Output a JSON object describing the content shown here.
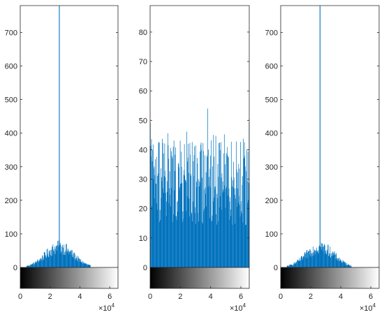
{
  "figure": {
    "colors": {
      "bars": "#0072BD",
      "axes": "#262626",
      "background": "#ffffff"
    }
  },
  "chart_data": [
    {
      "type": "bar",
      "title": "",
      "xlabel": "",
      "ylabel": "",
      "xlim": [
        0,
        65535
      ],
      "ylim": [
        0,
        780
      ],
      "x_exponent": "4",
      "yticks": [
        "0",
        "100",
        "200",
        "300",
        "400",
        "500",
        "600",
        "700"
      ],
      "xticks": [
        "0",
        "2",
        "4",
        "6"
      ],
      "distribution": {
        "shape": "gaussian",
        "center": 26200,
        "sigma": 9500,
        "peak_count": 70,
        "support": [
          4000,
          47000
        ]
      },
      "spike": {
        "x": 26200,
        "value": 780
      },
      "colorbar": "grayscale"
    },
    {
      "type": "bar",
      "title": "",
      "xlabel": "",
      "ylabel": "",
      "xlim": [
        0,
        65535
      ],
      "ylim": [
        0,
        89
      ],
      "x_exponent": "4",
      "yticks": [
        "0",
        "10",
        "20",
        "30",
        "40",
        "50",
        "60",
        "70",
        "80"
      ],
      "xticks": [
        "0",
        "2",
        "4",
        "6"
      ],
      "distribution": {
        "shape": "uniform",
        "mean_count": 32,
        "typical_max": 44,
        "max_value": 54
      },
      "colorbar": "grayscale"
    },
    {
      "type": "bar",
      "title": "",
      "xlabel": "",
      "ylabel": "",
      "xlim": [
        0,
        65535
      ],
      "ylim": [
        0,
        780
      ],
      "x_exponent": "4",
      "yticks": [
        "0",
        "100",
        "200",
        "300",
        "400",
        "500",
        "600",
        "700"
      ],
      "xticks": [
        "0",
        "2",
        "4",
        "6"
      ],
      "distribution": {
        "shape": "gaussian",
        "center": 26200,
        "sigma": 9500,
        "peak_count": 70,
        "support": [
          4000,
          47000
        ]
      },
      "spike": {
        "x": 26200,
        "value": 780
      },
      "colorbar": "grayscale"
    }
  ]
}
